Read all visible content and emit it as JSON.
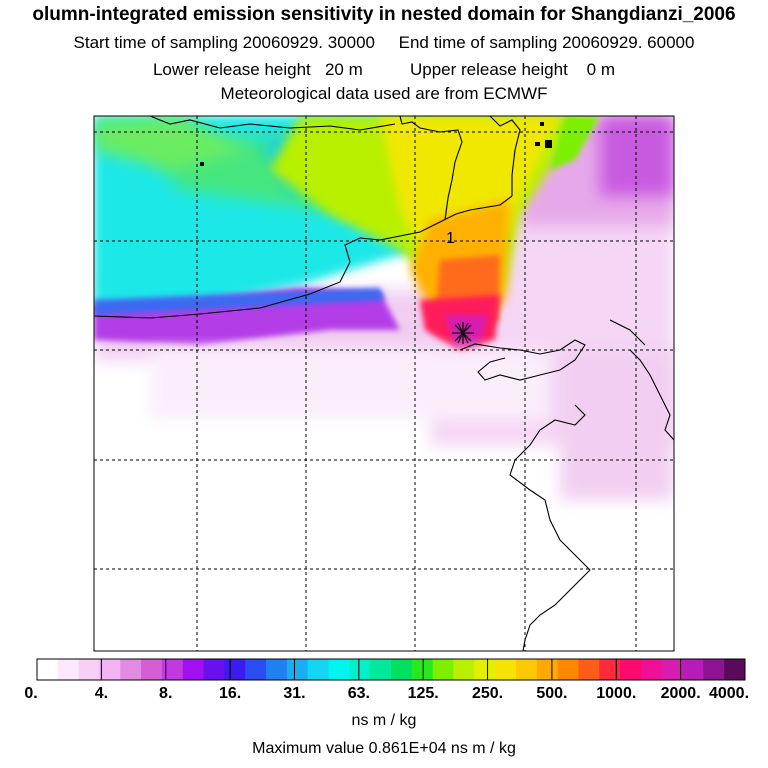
{
  "header": {
    "title": "olumn-integrated emission sensitivity in nested domain for Shangdianzi_2006",
    "line2": "Start time of sampling 20060929. 30000     End time of sampling 20060929. 60000",
    "line3": "Lower release height   20 m          Upper release height    0 m",
    "line4": "Meteorological data used are from ECMWF"
  },
  "map": {
    "contour_label": "1"
  },
  "colorbar": {
    "ticks": [
      "0.",
      "4.",
      "8.",
      "16.",
      "31.",
      "63.",
      "125.",
      "250.",
      "500.",
      "1000.",
      "2000.",
      "4000."
    ],
    "colors": [
      "#ffffff",
      "#fbe8fb",
      "#f7d0f7",
      "#f2b3f2",
      "#e38be3",
      "#d35fd3",
      "#c03ae0",
      "#a010f0",
      "#6a0ff0",
      "#3a1bf0",
      "#2a4cf2",
      "#1f80f4",
      "#19aef4",
      "#14d6f2",
      "#00f4f0",
      "#00f0c8",
      "#00e89a",
      "#00e060",
      "#28e81e",
      "#7cf000",
      "#b8f000",
      "#e2f000",
      "#f6e400",
      "#ffc800",
      "#ffa800",
      "#ff8800",
      "#ff5c1a",
      "#ff2a3a",
      "#ff0a6e",
      "#f01098",
      "#d81cb0",
      "#b81cb8",
      "#8c1490",
      "#5a0a5a"
    ],
    "units": "ns m / kg"
  },
  "footer": {
    "maximum": "Maximum value  0.861E+04 ns m / kg"
  }
}
